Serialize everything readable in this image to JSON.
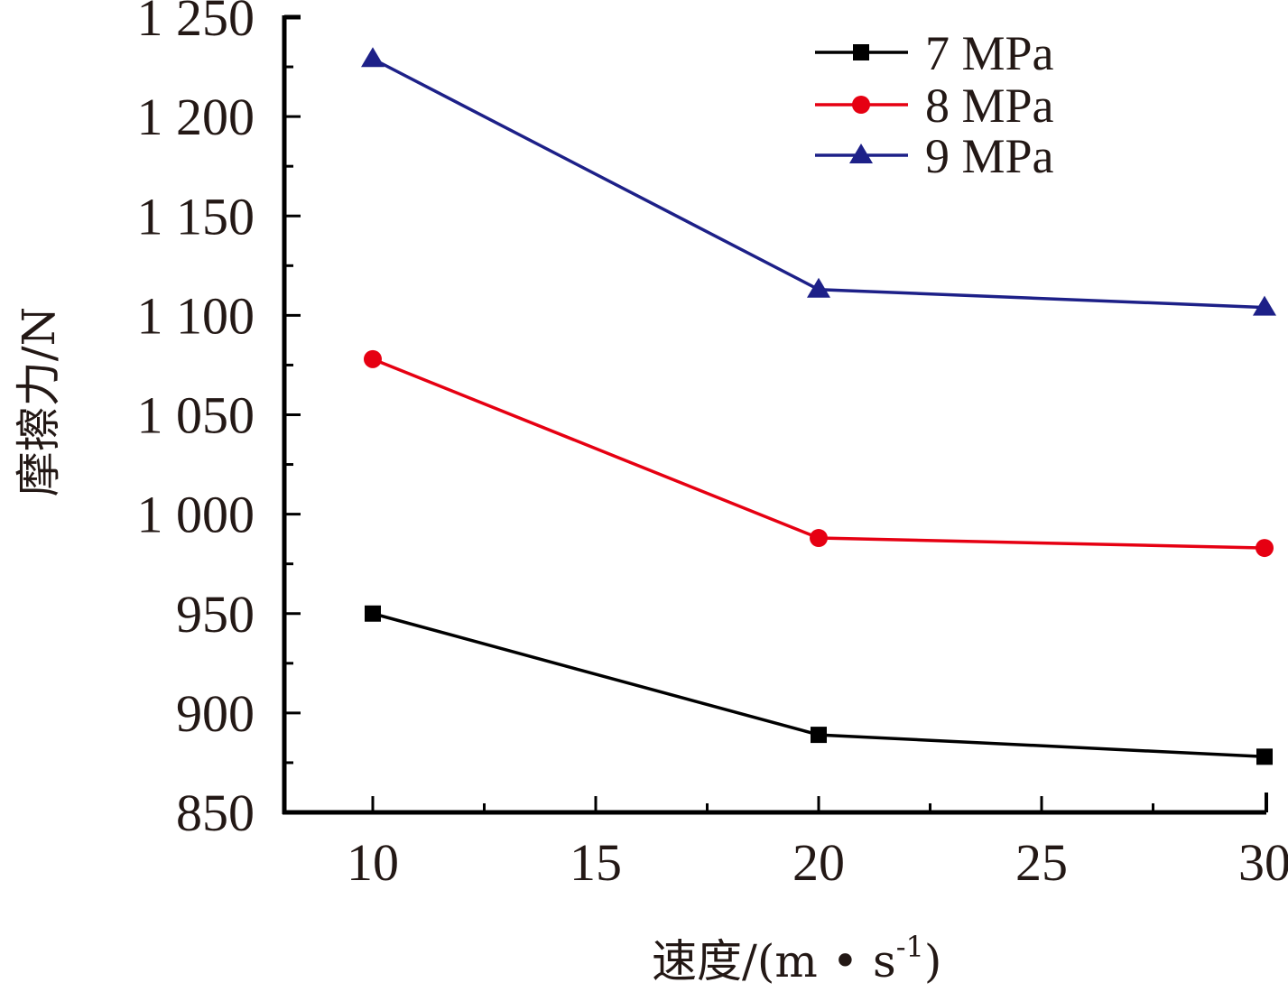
{
  "chart_data": {
    "type": "line",
    "title": "",
    "xlabel": "速度/(m • s⁻¹)",
    "xlabel_parts": {
      "main": "速度/(m • s",
      "sup": "-1",
      "close": ")"
    },
    "ylabel": "摩擦力/N",
    "x": [
      10,
      20,
      30
    ],
    "xlim": [
      8,
      30
    ],
    "ylim": [
      850,
      1250
    ],
    "x_ticks": [
      10,
      15,
      20,
      25,
      30
    ],
    "x_tick_labels": [
      "10",
      "15",
      "20",
      "25",
      "30"
    ],
    "y_ticks": [
      850,
      900,
      950,
      1000,
      1050,
      1100,
      1150,
      1200,
      1250
    ],
    "y_tick_labels": [
      "850",
      "900",
      "950",
      "1 000",
      "1 050",
      "1 100",
      "1 150",
      "1 200",
      "1 250"
    ],
    "grid": false,
    "legend_position": "top-right",
    "series": [
      {
        "name": "7 MPa",
        "marker": "square",
        "color": "#000000",
        "values": [
          950,
          889,
          878
        ]
      },
      {
        "name": "8 MPa",
        "marker": "circle",
        "color": "#e60012",
        "values": [
          1078,
          988,
          983
        ]
      },
      {
        "name": "9 MPa",
        "marker": "triangle",
        "color": "#1d2088",
        "values": [
          1229,
          1113,
          1104
        ]
      }
    ]
  }
}
